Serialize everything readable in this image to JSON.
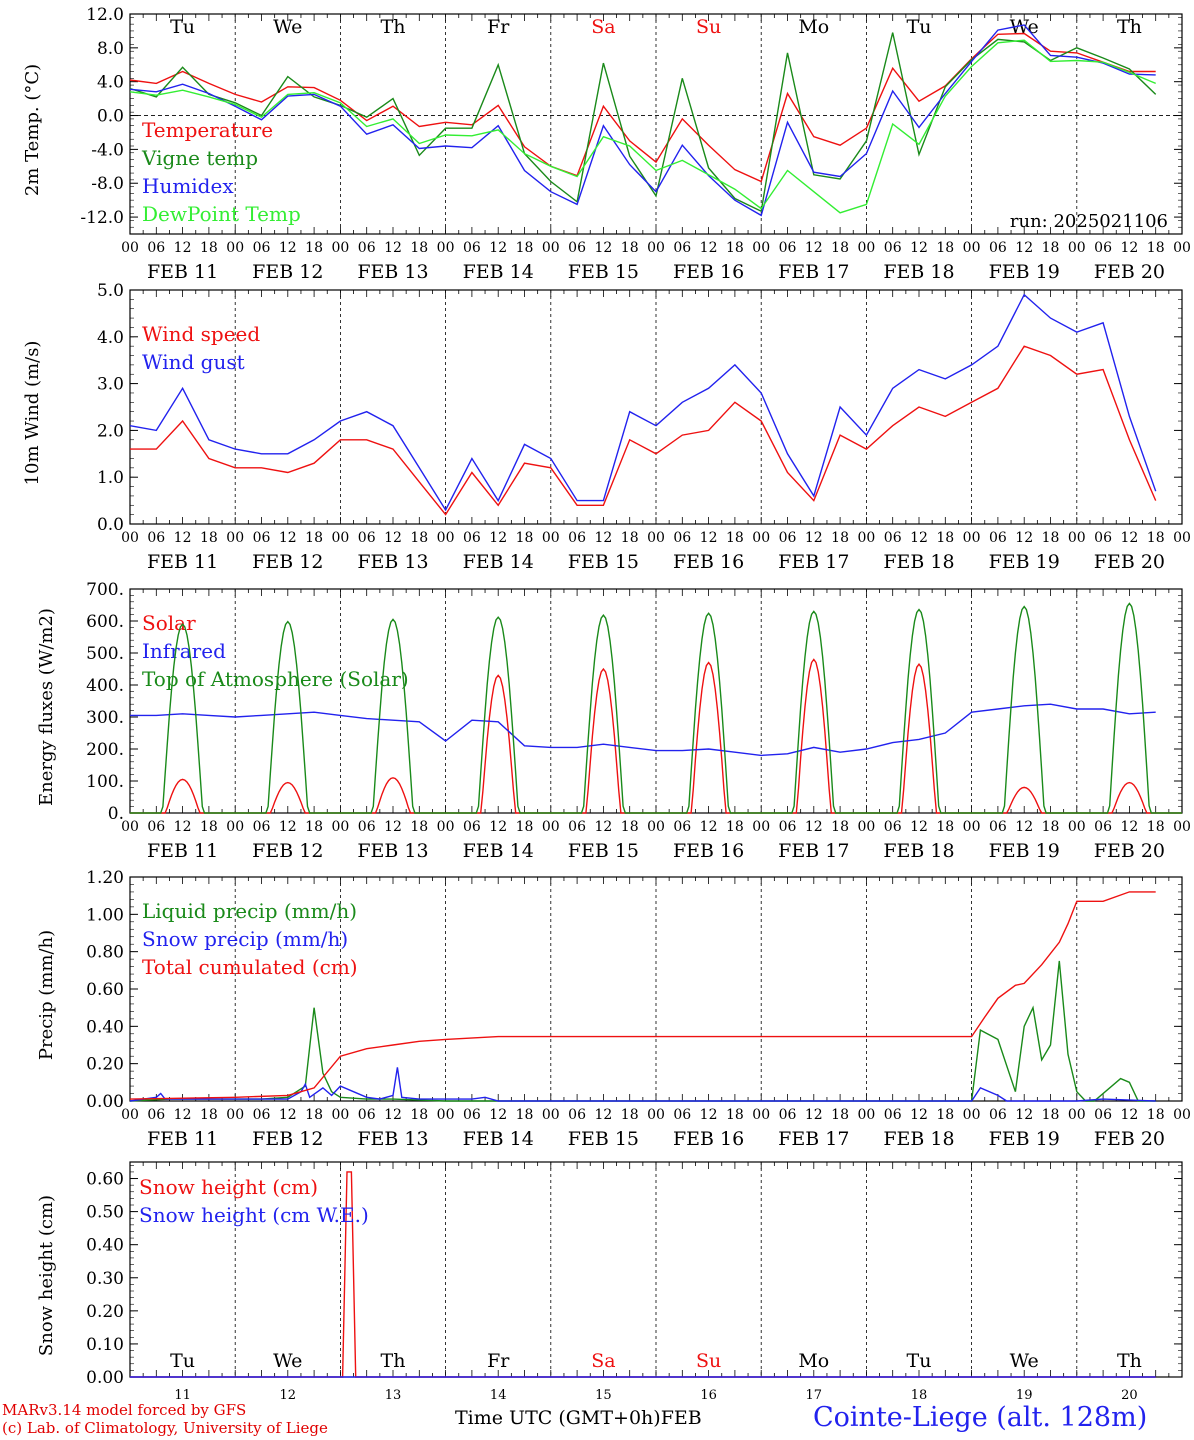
{
  "meta": {
    "model_line1": "MARv3.14 model forced by GFS",
    "model_line2": "(c) Lab. of Climatology, University of Liege",
    "xaxis_title": "Time UTC (GMT+0h)",
    "month": "FEB",
    "site_title": "Cointe-Liege (alt. 128m)",
    "run_label": "run: 2025021106"
  },
  "time_axis": {
    "hour_ticks": [
      "00",
      "06",
      "12",
      "18"
    ],
    "days": [
      {
        "date": "FEB 11",
        "num": "11",
        "dow": "Tu",
        "color": "#000000"
      },
      {
        "date": "FEB 12",
        "num": "12",
        "dow": "We",
        "color": "#000000"
      },
      {
        "date": "FEB 13",
        "num": "13",
        "dow": "Th",
        "color": "#000000"
      },
      {
        "date": "FEB 14",
        "num": "14",
        "dow": "Fr",
        "color": "#000000"
      },
      {
        "date": "FEB 15",
        "num": "15",
        "dow": "Sa",
        "color": "#ee1111"
      },
      {
        "date": "FEB 16",
        "num": "16",
        "dow": "Su",
        "color": "#ee1111"
      },
      {
        "date": "FEB 17",
        "num": "17",
        "dow": "Mo",
        "color": "#000000"
      },
      {
        "date": "FEB 18",
        "num": "18",
        "dow": "Tu",
        "color": "#000000"
      },
      {
        "date": "FEB 19",
        "num": "19",
        "dow": "We",
        "color": "#000000"
      },
      {
        "date": "FEB 20",
        "num": "20",
        "dow": "Th",
        "color": "#000000"
      }
    ]
  },
  "chart_data": [
    {
      "type": "line",
      "ylabel": "2m Temp. (°C)",
      "ylim": [
        -14,
        12
      ],
      "yticks": [
        12,
        8,
        4,
        0,
        -4,
        -8,
        -12
      ],
      "ytick_labels": [
        "12.0",
        "8.0",
        "4.0",
        "0.0",
        "-4.0",
        "-8.0",
        "-12.0"
      ],
      "zero_line": true,
      "x_unit": "hours since 2025-02-11 00 UTC",
      "series": [
        {
          "name": "Temperature",
          "color": "#ee1111",
          "x": [
            0,
            6,
            12,
            18,
            24,
            30,
            36,
            42,
            48,
            54,
            60,
            66,
            72,
            78,
            84,
            90,
            96,
            102,
            108,
            114,
            120,
            126,
            132,
            138,
            144,
            150,
            156,
            162,
            168,
            174,
            180,
            186,
            192,
            198,
            204,
            210,
            216,
            222,
            228,
            234
          ],
          "values": [
            4.2,
            3.8,
            5.2,
            3.8,
            2.5,
            1.6,
            3.4,
            3.3,
            1.8,
            -0.6,
            1.1,
            -1.3,
            -0.8,
            -1.1,
            1.2,
            -3.7,
            -6,
            -7.1,
            1.1,
            -3,
            -5.5,
            -0.4,
            -3.5,
            -6.4,
            -7.8,
            2.6,
            -2.5,
            -3.5,
            -1.5,
            5.6,
            1.7,
            3.5,
            6.7,
            9.6,
            9.7,
            7.6,
            7.4,
            6.3,
            5.2,
            5.2
          ]
        },
        {
          "name": "Vigne temp",
          "color": "#1a8a1a",
          "x": [
            0,
            6,
            12,
            18,
            24,
            30,
            36,
            42,
            48,
            54,
            60,
            66,
            72,
            78,
            84,
            90,
            96,
            102,
            108,
            114,
            120,
            126,
            132,
            138,
            144,
            150,
            156,
            162,
            168,
            174,
            180,
            186,
            192,
            198,
            204,
            210,
            216,
            222,
            228,
            234
          ],
          "values": [
            3.2,
            2.2,
            5.7,
            2.5,
            1.5,
            0,
            4.6,
            2.2,
            1.2,
            -0.2,
            2,
            -4.7,
            -1.5,
            -1.5,
            6,
            -4.5,
            -7.8,
            -10.2,
            6.2,
            -4.8,
            -9.5,
            4.4,
            -6.2,
            -9.8,
            -11.3,
            7.4,
            -7,
            -7.5,
            -3,
            9.8,
            -4.6,
            3.4,
            6.6,
            9,
            8.7,
            6.5,
            8,
            6.8,
            5.5,
            2.5
          ]
        },
        {
          "name": "Humidex",
          "color": "#2222ee",
          "x": [
            0,
            6,
            12,
            18,
            24,
            30,
            36,
            42,
            48,
            54,
            60,
            66,
            72,
            78,
            84,
            90,
            96,
            102,
            108,
            114,
            120,
            126,
            132,
            138,
            144,
            150,
            156,
            162,
            168,
            174,
            180,
            186,
            192,
            198,
            204,
            210,
            216,
            222,
            228,
            234
          ],
          "values": [
            3.1,
            2.8,
            3.7,
            2.6,
            1.1,
            -0.5,
            2.3,
            2.5,
            1.1,
            -2.2,
            -1.1,
            -3.9,
            -3.6,
            -3.8,
            -1.2,
            -6.5,
            -9,
            -10.5,
            -1.2,
            -5.8,
            -9,
            -3.5,
            -7.1,
            -10,
            -11.8,
            -0.8,
            -6.7,
            -7.2,
            -4.5,
            2.9,
            -1.4,
            2.6,
            6.4,
            10.1,
            10.7,
            7.1,
            6.9,
            6.2,
            4.9,
            4.8
          ]
        },
        {
          "name": "DewPoint Temp",
          "color": "#33ee33",
          "x": [
            0,
            6,
            12,
            18,
            24,
            30,
            36,
            42,
            48,
            54,
            60,
            66,
            72,
            78,
            84,
            90,
            96,
            102,
            108,
            114,
            120,
            126,
            132,
            138,
            144,
            150,
            156,
            162,
            168,
            174,
            180,
            186,
            192,
            198,
            204,
            210,
            216,
            222,
            228,
            234
          ],
          "values": [
            2.8,
            2.4,
            3,
            2.2,
            1.3,
            -0.2,
            2.5,
            2.7,
            1.5,
            -1.3,
            -0.4,
            -3.3,
            -2.3,
            -2.4,
            -1.7,
            -4.5,
            -6,
            -7.2,
            -2.5,
            -3.6,
            -6.5,
            -5.3,
            -7,
            -8.7,
            -11,
            -6.5,
            -9,
            -11.5,
            -10.5,
            -1,
            -3.4,
            2.3,
            5.8,
            8.6,
            8.9,
            6.4,
            6.5,
            6.3,
            5.1,
            3.8
          ]
        }
      ],
      "legend": [
        "Temperature",
        "Vigne temp",
        "Humidex",
        "DewPoint Temp"
      ],
      "legend_placement": "top-left"
    },
    {
      "type": "line",
      "ylabel": "10m Wind (m/s)",
      "ylim": [
        0,
        5
      ],
      "yticks": [
        0,
        1,
        2,
        3,
        4,
        5
      ],
      "ytick_labels": [
        "0.0",
        "1.0",
        "2.0",
        "3.0",
        "4.0",
        "5.0"
      ],
      "series": [
        {
          "name": "Wind speed",
          "color": "#ee1111",
          "x": [
            0,
            6,
            12,
            18,
            24,
            30,
            36,
            42,
            48,
            54,
            60,
            66,
            72,
            78,
            84,
            90,
            96,
            102,
            108,
            114,
            120,
            126,
            132,
            138,
            144,
            150,
            156,
            162,
            168,
            174,
            180,
            186,
            192,
            198,
            204,
            210,
            216,
            222,
            228,
            234
          ],
          "values": [
            1.6,
            1.6,
            2.2,
            1.4,
            1.2,
            1.2,
            1.1,
            1.3,
            1.8,
            1.8,
            1.6,
            0.9,
            0.2,
            1.1,
            0.4,
            1.3,
            1.2,
            0.4,
            0.4,
            1.8,
            1.5,
            1.9,
            2,
            2.6,
            2.2,
            1.1,
            0.5,
            1.9,
            1.6,
            2.1,
            2.5,
            2.3,
            2.6,
            2.9,
            3.8,
            3.6,
            3.2,
            3.3,
            1.8,
            0.5
          ]
        },
        {
          "name": "Wind gust",
          "color": "#2222ee",
          "x": [
            0,
            6,
            12,
            18,
            24,
            30,
            36,
            42,
            48,
            54,
            60,
            66,
            72,
            78,
            84,
            90,
            96,
            102,
            108,
            114,
            120,
            126,
            132,
            138,
            144,
            150,
            156,
            162,
            168,
            174,
            180,
            186,
            192,
            198,
            204,
            210,
            216,
            222,
            228,
            234
          ],
          "values": [
            2.1,
            2,
            2.9,
            1.8,
            1.6,
            1.5,
            1.5,
            1.8,
            2.2,
            2.4,
            2.1,
            1.2,
            0.3,
            1.4,
            0.5,
            1.7,
            1.4,
            0.5,
            0.5,
            2.4,
            2.1,
            2.6,
            2.9,
            3.4,
            2.8,
            1.5,
            0.6,
            2.5,
            1.9,
            2.9,
            3.3,
            3.1,
            3.4,
            3.8,
            4.9,
            4.4,
            4.1,
            4.3,
            2.3,
            0.7
          ]
        }
      ],
      "legend": [
        "Wind speed",
        "Wind gust"
      ],
      "legend_placement": "top-left"
    },
    {
      "type": "line",
      "ylabel": "Energy fluxes (W/m2)",
      "ylim": [
        0,
        700
      ],
      "yticks": [
        0,
        100,
        200,
        300,
        400,
        500,
        600,
        700
      ],
      "ytick_labels": [
        "0.",
        "100.",
        "200.",
        "300.",
        "400.",
        "500.",
        "600.",
        "700."
      ],
      "series": [
        {
          "name": "Solar",
          "color": "#ee1111",
          "peaks": [
            105,
            95,
            110,
            430,
            450,
            470,
            480,
            465,
            80,
            95
          ]
        },
        {
          "name": "Infrared",
          "color": "#2222ee",
          "x": [
            0,
            6,
            12,
            18,
            24,
            30,
            36,
            42,
            48,
            54,
            60,
            66,
            72,
            78,
            84,
            90,
            96,
            102,
            108,
            114,
            120,
            126,
            132,
            138,
            144,
            150,
            156,
            162,
            168,
            174,
            180,
            186,
            192,
            198,
            204,
            210,
            216,
            222,
            228,
            234
          ],
          "values": [
            305,
            305,
            310,
            305,
            300,
            305,
            310,
            315,
            305,
            295,
            290,
            285,
            225,
            290,
            285,
            210,
            205,
            205,
            215,
            205,
            195,
            195,
            200,
            190,
            180,
            185,
            205,
            190,
            200,
            220,
            230,
            250,
            315,
            325,
            335,
            340,
            325,
            325,
            310,
            315
          ]
        },
        {
          "name": "Top of Atmosphere (Solar)",
          "color": "#1a8a1a",
          "peaks": [
            590,
            598,
            605,
            612,
            618,
            624,
            630,
            636,
            645,
            655
          ]
        }
      ],
      "legend": [
        "Solar",
        "Infrared",
        "Top of Atmosphere (Solar)"
      ],
      "legend_placement": "top-left"
    },
    {
      "type": "line",
      "ylabel": "Precip (mm/h)",
      "ylim": [
        0,
        1.2
      ],
      "yticks": [
        0,
        0.2,
        0.4,
        0.6,
        0.8,
        1.0,
        1.2
      ],
      "ytick_labels": [
        "0.00",
        "0.20",
        "0.40",
        "0.60",
        "0.80",
        "1.00",
        "1.20"
      ],
      "series": [
        {
          "name": "Liquid precip (mm/h)",
          "color": "#1a8a1a",
          "x": [
            0,
            9,
            18,
            30,
            36,
            40,
            42,
            44,
            46,
            48,
            54,
            60,
            72,
            96,
            192,
            194,
            198,
            202,
            204,
            206,
            208,
            210,
            212,
            214,
            216,
            218,
            220,
            226,
            228,
            230,
            234
          ],
          "values": [
            0,
            0.01,
            0.01,
            0.01,
            0.02,
            0.08,
            0.5,
            0.15,
            0.05,
            0.02,
            0.01,
            0.01,
            0,
            0,
            0,
            0.38,
            0.33,
            0.05,
            0.4,
            0.5,
            0.22,
            0.3,
            0.75,
            0.25,
            0.05,
            0,
            0,
            0.12,
            0.1,
            0,
            0
          ]
        },
        {
          "name": "Snow precip (mm/h)",
          "color": "#2222ee",
          "x": [
            0,
            6,
            7,
            8,
            36,
            39,
            40,
            41,
            44,
            46,
            48,
            51,
            54,
            57,
            60,
            61,
            62,
            66,
            78,
            81,
            84,
            96,
            192,
            194,
            198,
            200,
            216,
            222,
            234
          ],
          "values": [
            0,
            0.02,
            0.04,
            0.01,
            0.01,
            0.05,
            0.09,
            0.02,
            0.07,
            0.03,
            0.08,
            0.05,
            0.02,
            0.01,
            0.03,
            0.18,
            0.02,
            0.01,
            0.01,
            0.02,
            0,
            0,
            0,
            0.07,
            0.03,
            0,
            0,
            0.01,
            0
          ]
        },
        {
          "name": "Total cumulated (cm)",
          "color": "#ee1111",
          "x": [
            0,
            24,
            36,
            42,
            48,
            54,
            60,
            66,
            72,
            84,
            96,
            120,
            144,
            168,
            192,
            195,
            198,
            202,
            204,
            208,
            212,
            214,
            216,
            222,
            228,
            234
          ],
          "values": [
            0.01,
            0.02,
            0.03,
            0.07,
            0.24,
            0.28,
            0.3,
            0.32,
            0.33,
            0.345,
            0.345,
            0.345,
            0.345,
            0.345,
            0.345,
            0.45,
            0.55,
            0.62,
            0.63,
            0.73,
            0.85,
            0.95,
            1.07,
            1.07,
            1.12,
            1.12
          ]
        }
      ],
      "legend": [
        "Liquid precip (mm/h)",
        "Snow precip (mm/h)",
        "Total cumulated (cm)"
      ],
      "legend_placement": "top-left"
    },
    {
      "type": "line",
      "ylabel": "Snow height (cm)",
      "ylim": [
        0,
        0.65
      ],
      "yticks": [
        0,
        0.1,
        0.2,
        0.3,
        0.4,
        0.5,
        0.6
      ],
      "ytick_labels": [
        "0.00",
        "0.10",
        "0.20",
        "0.30",
        "0.40",
        "0.50",
        "0.60"
      ],
      "series": [
        {
          "name": "Snow height (cm)",
          "color": "#ee1111",
          "x": [
            0,
            48.5,
            49.5,
            50.5,
            51.5,
            234
          ],
          "values": [
            0,
            0,
            0.62,
            0.62,
            0,
            0
          ]
        },
        {
          "name": "Snow height (cm W.E.)",
          "color": "#2222ee",
          "x": [
            0,
            234
          ],
          "values": [
            0,
            0
          ]
        }
      ],
      "legend": [
        "Snow height (cm)",
        "Snow height (cm W.E.)"
      ],
      "legend_placement": "top-left"
    }
  ]
}
